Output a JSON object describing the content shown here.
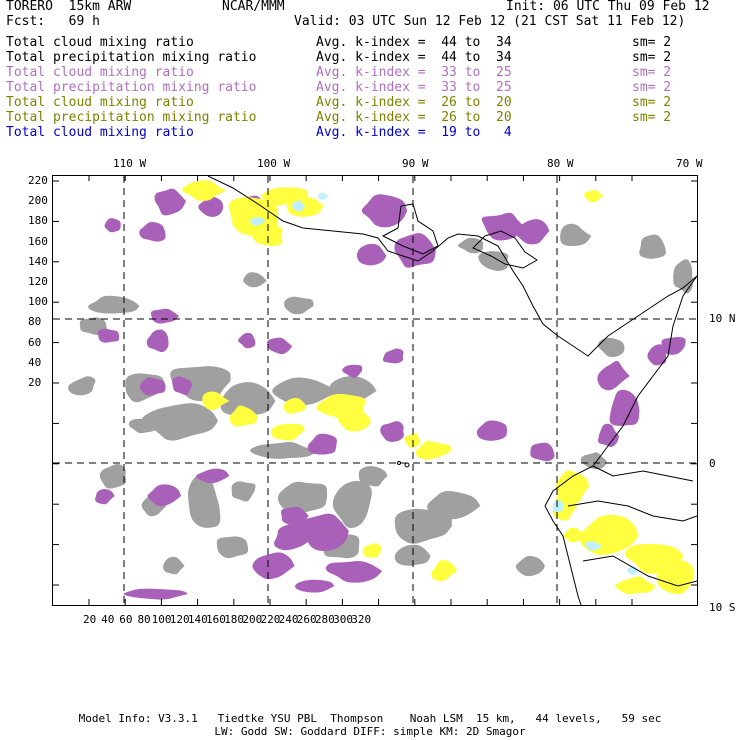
{
  "header": {
    "model": "TORERO  15km ARW",
    "center": "NCAR/MMM",
    "init": "Init: 06 UTC Thu 09 Feb 12",
    "fcst": "Fcst:   69 h",
    "valid": "Valid: 03 UTC Sun 12 Feb 12 (21 CST Sat 11 Feb 12)"
  },
  "legend": [
    {
      "label": "Total cloud mixing ratio",
      "kindex": "Avg. k-index =  44 to  34",
      "sm": "sm= 2",
      "color": "#000000"
    },
    {
      "label": "Total precipitation mixing ratio",
      "kindex": "Avg. k-index =  44 to  34",
      "sm": "sm= 2",
      "color": "#000000"
    },
    {
      "label": "Total cloud mixing ratio",
      "kindex": "Avg. k-index =  33 to  25",
      "sm": "sm= 2",
      "color": "#b070c0"
    },
    {
      "label": "Total precipitation mixing ratio",
      "kindex": "Avg. k-index =  33 to  25",
      "sm": "sm= 2",
      "color": "#b070c0"
    },
    {
      "label": "Total cloud mixing ratio",
      "kindex": "Avg. k-index =  26 to  20",
      "sm": "sm= 2",
      "color": "#808000"
    },
    {
      "label": "Total precipitation mixing ratio",
      "kindex": "Avg. k-index =  26 to  20",
      "sm": "sm= 2",
      "color": "#808000"
    },
    {
      "label": "Total cloud mixing ratio",
      "kindex": "Avg. k-index =  19 to   4",
      "sm": "",
      "color": "#0000d0"
    }
  ],
  "map": {
    "top_lon_labels": [
      "110 W",
      "100 W",
      "90 W",
      "80 W",
      "70 W"
    ],
    "right_lat_labels": [
      "10 N",
      "0",
      "10 S"
    ],
    "left_grid_labels": [
      "220",
      "200",
      "180",
      "160",
      "140",
      "120",
      "100",
      "80",
      "60",
      "40",
      "20"
    ],
    "bottom_grid_labels": [
      "20",
      "40",
      "60",
      "80",
      "100",
      "120",
      "140",
      "160",
      "180",
      "200",
      "220",
      "240",
      "260",
      "280",
      "300",
      "320"
    ],
    "colors": {
      "purple": "#a860b8",
      "gray": "#a0a0a0",
      "yellow": "#ffff40",
      "cyan": "#c0f0ff",
      "coast": "#000000"
    }
  },
  "footer": {
    "line1": "Model Info: V3.3.1   Tiedtke YSU PBL  Thompson    Noah LSM  15 km,   44 levels,   59 sec",
    "line2": "LW: Godd SW: Goddard DIFF: simple KM: 2D Smagor"
  }
}
